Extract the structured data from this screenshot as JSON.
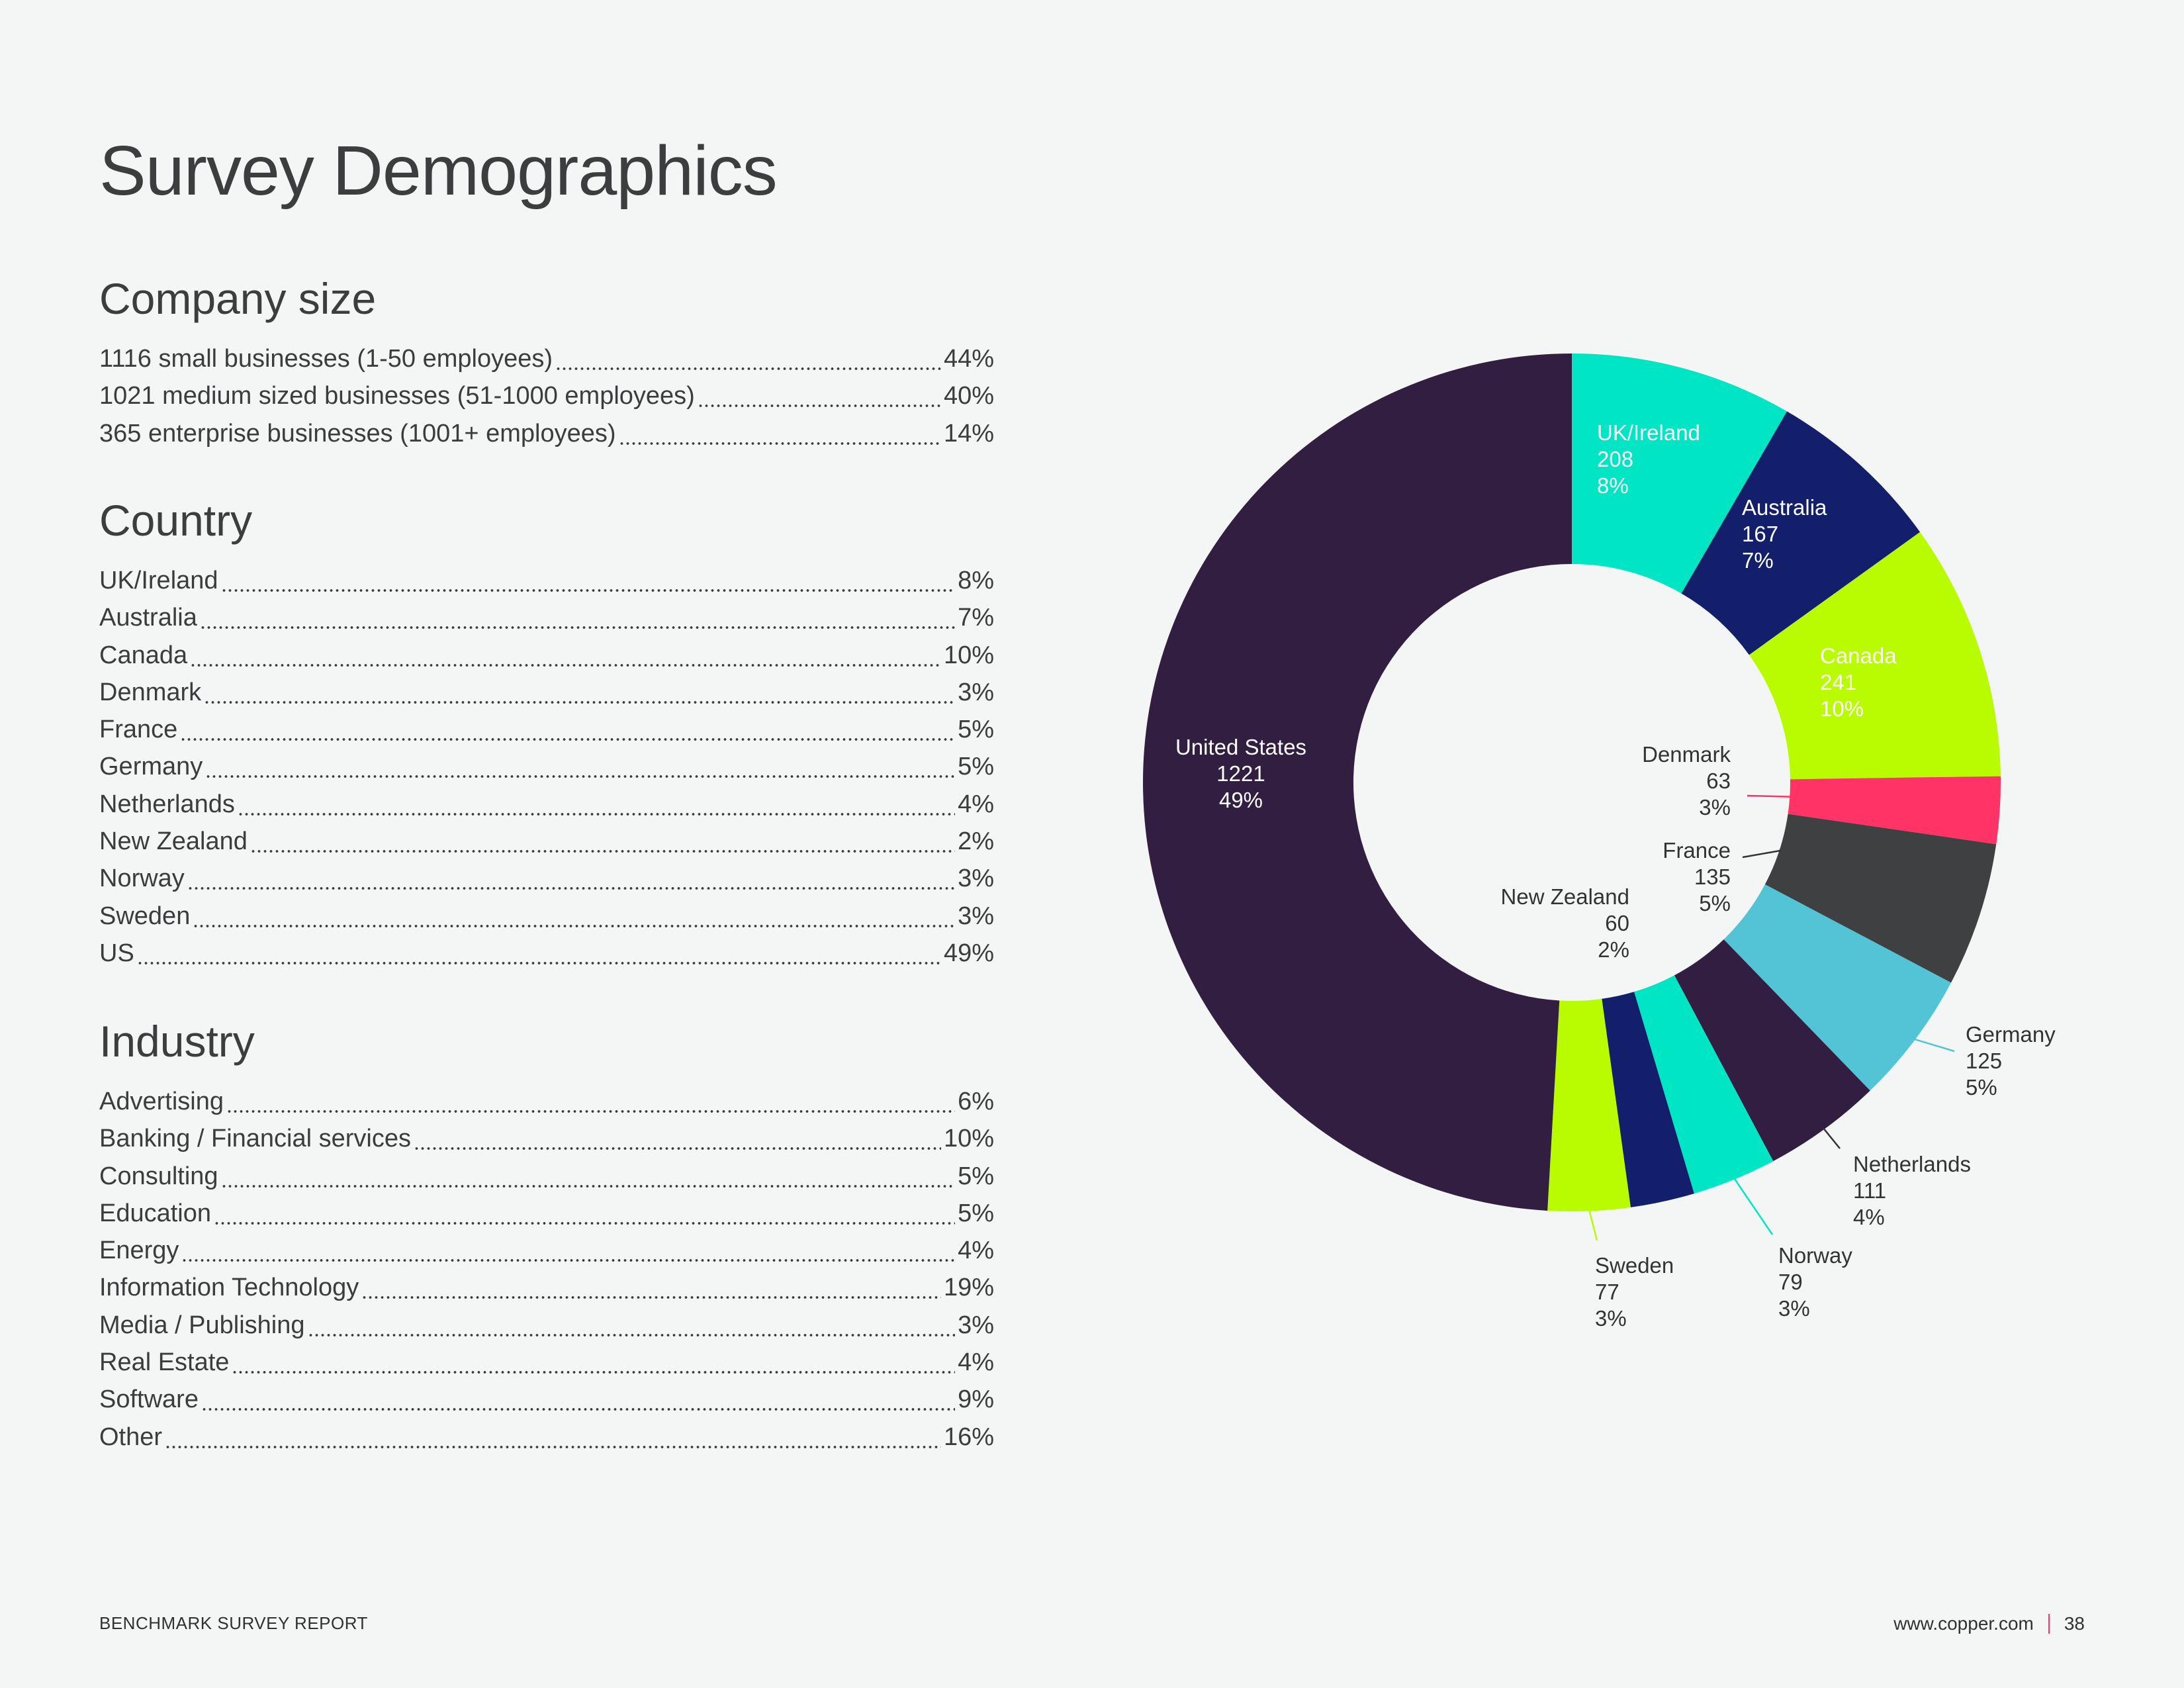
{
  "title": "Survey Demographics",
  "company_size": {
    "heading": "Company size",
    "rows": [
      {
        "label": "1116 small businesses (1-50 employees)",
        "value": "44%"
      },
      {
        "label": "1021 medium sized businesses (51-1000 employees)",
        "value": "40%"
      },
      {
        "label": "365 enterprise businesses (1001+ employees)",
        "value": "14%"
      }
    ]
  },
  "country": {
    "heading": "Country",
    "rows": [
      {
        "label": "UK/Ireland",
        "value": "8%"
      },
      {
        "label": "Australia",
        "value": "7%"
      },
      {
        "label": "Canada",
        "value": "10%"
      },
      {
        "label": "Denmark",
        "value": "3%"
      },
      {
        "label": "France",
        "value": "5%"
      },
      {
        "label": "Germany",
        "value": "5%"
      },
      {
        "label": "Netherlands",
        "value": "4%"
      },
      {
        "label": "New Zealand",
        "value": "2%"
      },
      {
        "label": "Norway",
        "value": "3%"
      },
      {
        "label": "Sweden",
        "value": "3%"
      },
      {
        "label": "US",
        "value": "49%"
      }
    ]
  },
  "industry": {
    "heading": "Industry",
    "rows": [
      {
        "label": "Advertising",
        "value": "6%"
      },
      {
        "label": "Banking / Financial services",
        "value": "10%"
      },
      {
        "label": "Consulting",
        "value": "5%"
      },
      {
        "label": "Education",
        "value": "5%"
      },
      {
        "label": "Energy",
        "value": "4%"
      },
      {
        "label": "Information Technology",
        "value": "19%"
      },
      {
        "label": "Media / Publishing",
        "value": "3%"
      },
      {
        "label": "Real Estate",
        "value": "4%"
      },
      {
        "label": "Software",
        "value": "9%"
      },
      {
        "label": "Other",
        "value": "16%"
      }
    ]
  },
  "chart_data": {
    "type": "pie",
    "variant": "donut",
    "title": "",
    "slices": [
      {
        "name": "UK/Ireland",
        "count": 208,
        "percent": "8%",
        "color": "#00e5c3"
      },
      {
        "name": "Australia",
        "count": 167,
        "percent": "7%",
        "color": "#131f6a"
      },
      {
        "name": "Canada",
        "count": 241,
        "percent": "10%",
        "color": "#b9fb00"
      },
      {
        "name": "Denmark",
        "count": 63,
        "percent": "3%",
        "color": "#ff3366"
      },
      {
        "name": "France",
        "count": 135,
        "percent": "5%",
        "color": "#3e4042"
      },
      {
        "name": "Germany",
        "count": 125,
        "percent": "5%",
        "color": "#52c4d6"
      },
      {
        "name": "Netherlands",
        "count": 111,
        "percent": "4%",
        "color": "#321e40"
      },
      {
        "name": "Norway",
        "count": 79,
        "percent": "3%",
        "color": "#00e5c3"
      },
      {
        "name": "New Zealand",
        "count": 60,
        "percent": "2%",
        "color": "#131f6a"
      },
      {
        "name": "Sweden",
        "count": 77,
        "percent": "3%",
        "color": "#b9fb00"
      },
      {
        "name": "United States",
        "count": 1221,
        "percent": "49%",
        "color": "#321e40"
      }
    ]
  },
  "footer": {
    "report": "BENCHMARK SURVEY REPORT",
    "url": "www.copper.com",
    "page": "38"
  }
}
